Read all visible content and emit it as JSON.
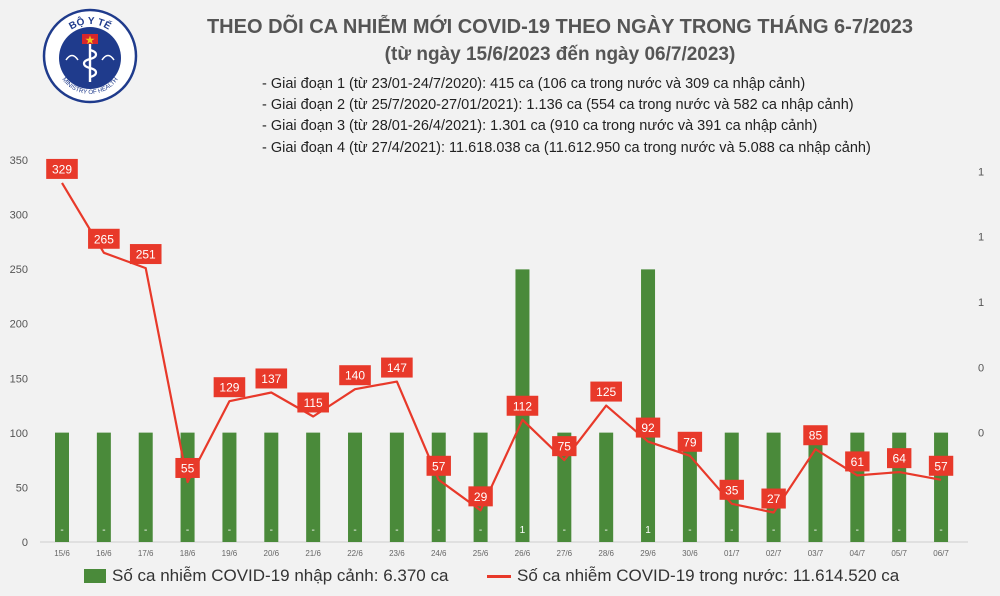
{
  "logo": {
    "top_text": "BỘ Y TẾ",
    "bottom_text": "MINISTRY OF HEALTH",
    "colors": {
      "navy": "#1f3b8c",
      "red": "#d7262b",
      "yellow": "#f5c518"
    }
  },
  "header": {
    "title": "THEO DÕI CA NHIỄM MỚI COVID-19 THEO NGÀY TRONG THÁNG 6-7/2023",
    "subtitle": "(từ ngày 15/6/2023 đến ngày 06/7/2023)"
  },
  "stages": [
    "- Giai đoạn 1 (từ 23/01-24/7/2020): 415 ca (106 ca trong nước và 309 ca nhập cảnh)",
    "- Giai đoạn 2 (từ 25/7/2020-27/01/2021): 1.136 ca (554 ca trong nước và 582 ca nhập cảnh)",
    "- Giai đoạn 3 (từ 28/01-26/4/2021): 1.301 ca (910 ca trong nước và 391 ca nhập cảnh)",
    "- Giai đoạn 4 (từ 27/4/2021): 11.618.038 ca (11.612.950 ca trong nước và 5.088 ca nhập cảnh)"
  ],
  "chart_data": {
    "type": "bar",
    "categories": [
      "15/6",
      "16/6",
      "17/6",
      "18/6",
      "19/6",
      "20/6",
      "21/6",
      "22/6",
      "23/6",
      "24/6",
      "25/6",
      "26/6",
      "27/6",
      "28/6",
      "29/6",
      "30/6",
      "01/7",
      "02/7",
      "03/7",
      "04/7",
      "05/7",
      "06/7"
    ],
    "left_axis": {
      "ylim": [
        0,
        350
      ],
      "ticks": [
        "0",
        "50",
        "100",
        "150",
        "200",
        "250",
        "300",
        "350"
      ],
      "tick_values": [
        0,
        50,
        100,
        150,
        200,
        250,
        300,
        350
      ]
    },
    "right_axis": {
      "ylim": [
        -0.67,
        1.67
      ],
      "ticks": [
        "0",
        "0",
        "1",
        "1",
        "1"
      ],
      "tick_values": [
        0,
        0.4,
        0.8,
        1.2,
        1.6
      ]
    },
    "series": [
      {
        "name": "Số ca nhiễm COVID-19 nhập cảnh: 6.370 ca",
        "type": "bar",
        "axis": "right",
        "color": "#4a8a3a",
        "values": [
          0,
          0,
          0,
          0,
          0,
          0,
          0,
          0,
          0,
          0,
          0,
          1,
          0,
          0,
          1,
          0,
          0,
          0,
          0,
          0,
          0,
          0
        ],
        "labels": [
          "-",
          "-",
          "-",
          "-",
          "-",
          "-",
          "-",
          "-",
          "-",
          "-",
          "-",
          "1",
          "-",
          "-",
          "1",
          "-",
          "-",
          "-",
          "-",
          "-",
          "-",
          "-"
        ]
      },
      {
        "name": "Số ca nhiễm COVID-19 trong nước: 11.614.520 ca",
        "type": "line",
        "axis": "left",
        "color": "#e8392a",
        "values": [
          329,
          265,
          251,
          55,
          129,
          137,
          115,
          140,
          147,
          57,
          29,
          112,
          75,
          125,
          92,
          79,
          35,
          27,
          85,
          61,
          64,
          57
        ]
      }
    ],
    "legend_position": "bottom",
    "grid": false
  }
}
